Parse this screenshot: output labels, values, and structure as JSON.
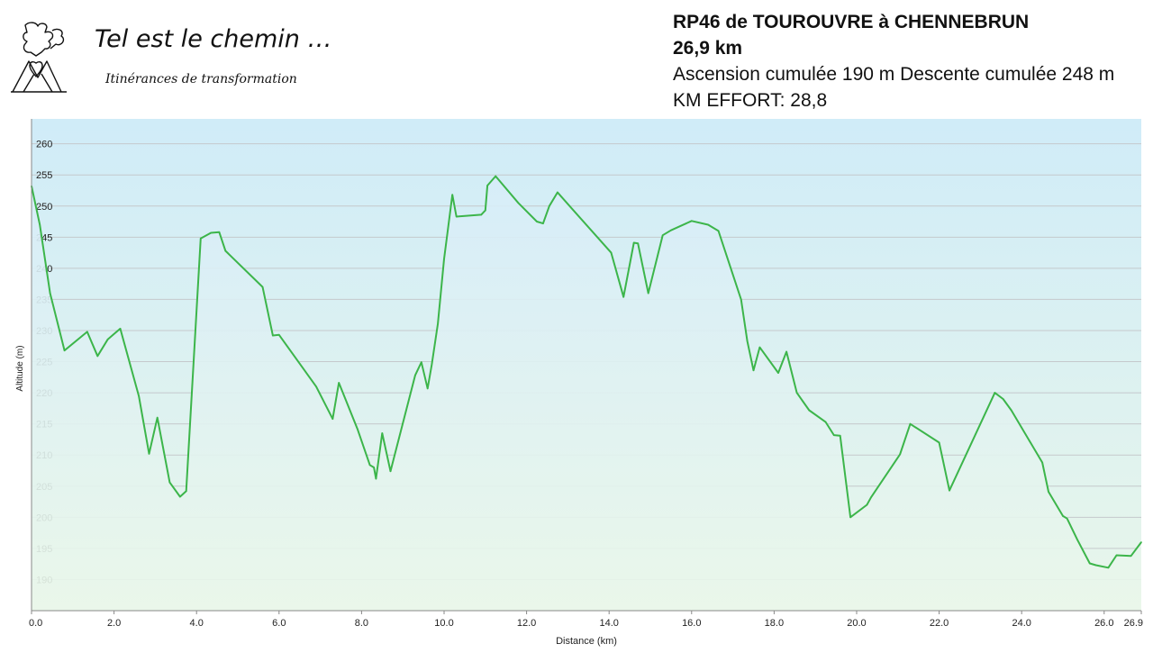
{
  "brand": {
    "title": "Tel est le chemin …",
    "subtitle": "Itinérances de transformation",
    "logo_icon": "walkers-heart-mountain-logo"
  },
  "route": {
    "name": "RP46 de TOUROUVRE à CHENNEBRUN",
    "distance": "26,9 km",
    "elevation": "Ascension cumulée 190 m Descente cumulée 248 m",
    "effort": "KM EFFORT: 28,8"
  },
  "chart_data": {
    "type": "area",
    "xlabel": "Distance (km)",
    "ylabel": "Altitude (m)",
    "xlim": [
      0,
      26.9
    ],
    "ylim": [
      185,
      264
    ],
    "x_ticks": [
      0,
      2,
      4,
      6,
      8,
      10,
      12,
      14,
      16,
      18,
      20,
      22,
      24,
      26,
      26.9
    ],
    "x_tick_labels": [
      "0.0",
      "2.0",
      "4.0",
      "6.0",
      "8.0",
      "10.0",
      "12.0",
      "14.0",
      "16.0",
      "18.0",
      "20.0",
      "22.0",
      "24.0",
      "26.0",
      "26.9"
    ],
    "y_ticks": [
      190,
      195,
      200,
      205,
      210,
      215,
      220,
      225,
      230,
      235,
      240,
      245,
      250,
      255,
      260
    ],
    "grid": true,
    "colors": {
      "line": "#3cb54a",
      "fill_top": "#d7edf9",
      "fill_bottom": "#eaf7ea",
      "bg_top": "#d0ecf8",
      "bg_bottom": "#e8f6ea"
    },
    "x": [
      0.0,
      0.2,
      0.45,
      0.8,
      1.35,
      1.6,
      1.85,
      2.15,
      2.6,
      2.85,
      3.05,
      3.35,
      3.6,
      3.75,
      4.1,
      4.35,
      4.55,
      4.7,
      5.6,
      5.85,
      6.0,
      6.9,
      7.3,
      7.45,
      7.9,
      8.2,
      8.3,
      8.35,
      8.5,
      8.7,
      9.3,
      9.45,
      9.6,
      9.7,
      9.85,
      10.0,
      10.2,
      10.3,
      10.9,
      11.0,
      11.05,
      11.25,
      11.8,
      12.25,
      12.4,
      12.55,
      12.75,
      14.05,
      14.35,
      14.6,
      14.7,
      14.95,
      15.3,
      15.5,
      16.0,
      16.4,
      16.65,
      17.2,
      17.35,
      17.5,
      17.65,
      18.1,
      18.3,
      18.55,
      18.85,
      19.25,
      19.45,
      19.6,
      19.85,
      20.25,
      20.35,
      21.05,
      21.3,
      22.0,
      22.25,
      23.35,
      23.55,
      23.75,
      24.5,
      24.65,
      25.0,
      25.1,
      25.35,
      25.65,
      25.8,
      26.1,
      26.3,
      26.65,
      26.9
    ],
    "y": [
      253.2,
      247.0,
      236.0,
      226.8,
      229.8,
      225.9,
      228.6,
      230.3,
      219.5,
      210.2,
      216.0,
      205.6,
      203.3,
      204.2,
      244.8,
      245.7,
      245.8,
      242.8,
      237.0,
      229.2,
      229.3,
      221.0,
      215.8,
      221.6,
      214.2,
      208.4,
      208.0,
      206.2,
      213.5,
      207.4,
      222.8,
      224.9,
      220.7,
      224.5,
      231.1,
      241.5,
      251.8,
      248.3,
      248.6,
      249.3,
      253.3,
      254.8,
      250.5,
      247.5,
      247.2,
      250.0,
      252.2,
      242.5,
      235.4,
      244.1,
      244.0,
      236.0,
      245.3,
      246.1,
      247.6,
      247.0,
      246.0,
      235.0,
      228.3,
      223.6,
      227.3,
      223.2,
      226.6,
      220.0,
      217.2,
      215.3,
      213.2,
      213.1,
      200.0,
      202.0,
      203.2,
      210.1,
      215.0,
      212.0,
      204.3,
      220.0,
      219.0,
      217.2,
      208.8,
      204.1,
      200.2,
      199.8,
      196.4,
      192.6,
      192.3,
      191.9,
      193.9,
      193.8,
      196.0
    ]
  }
}
